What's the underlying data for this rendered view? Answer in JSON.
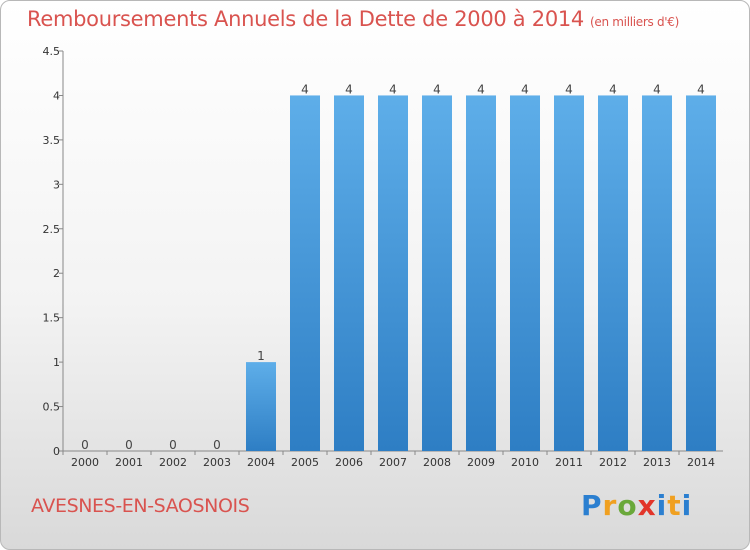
{
  "title": "Remboursements Annuels de la Dette de 2000 à 2014",
  "unit": "(en milliers d'€)",
  "commune": "AVESNES-EN-SAOSNOIS",
  "logo": {
    "p": "P",
    "r": "r",
    "o": "o",
    "x": "x",
    "i": "i",
    "t": "t",
    "i2": "i"
  },
  "colors": {
    "bar_top": "#5eaee9",
    "bar_bottom": "#2e7ec4",
    "title": "#d9534f"
  },
  "chart_data": {
    "type": "bar",
    "categories": [
      "2000",
      "2001",
      "2002",
      "2003",
      "2004",
      "2005",
      "2006",
      "2007",
      "2008",
      "2009",
      "2010",
      "2011",
      "2012",
      "2013",
      "2014"
    ],
    "values": [
      0,
      0,
      0,
      0,
      1,
      4,
      4,
      4,
      4,
      4,
      4,
      4,
      4,
      4,
      4
    ],
    "value_labels": [
      "0",
      "0",
      "0",
      "0",
      "1",
      "4",
      "4",
      "4",
      "4",
      "4",
      "4",
      "4",
      "4",
      "4",
      "4"
    ],
    "yticks": [
      0,
      0.5,
      1,
      1.5,
      2,
      2.5,
      3,
      3.5,
      4,
      4.5
    ],
    "ytick_labels": [
      "0",
      "0.5",
      "1",
      "1.5",
      "2",
      "2.5",
      "3",
      "3.5",
      "4",
      "4.5"
    ],
    "ylim": [
      0,
      4.5
    ],
    "title": "Remboursements Annuels de la Dette de 2000 à 2014",
    "xlabel": "",
    "ylabel": "",
    "grid": false,
    "legend": "none"
  }
}
